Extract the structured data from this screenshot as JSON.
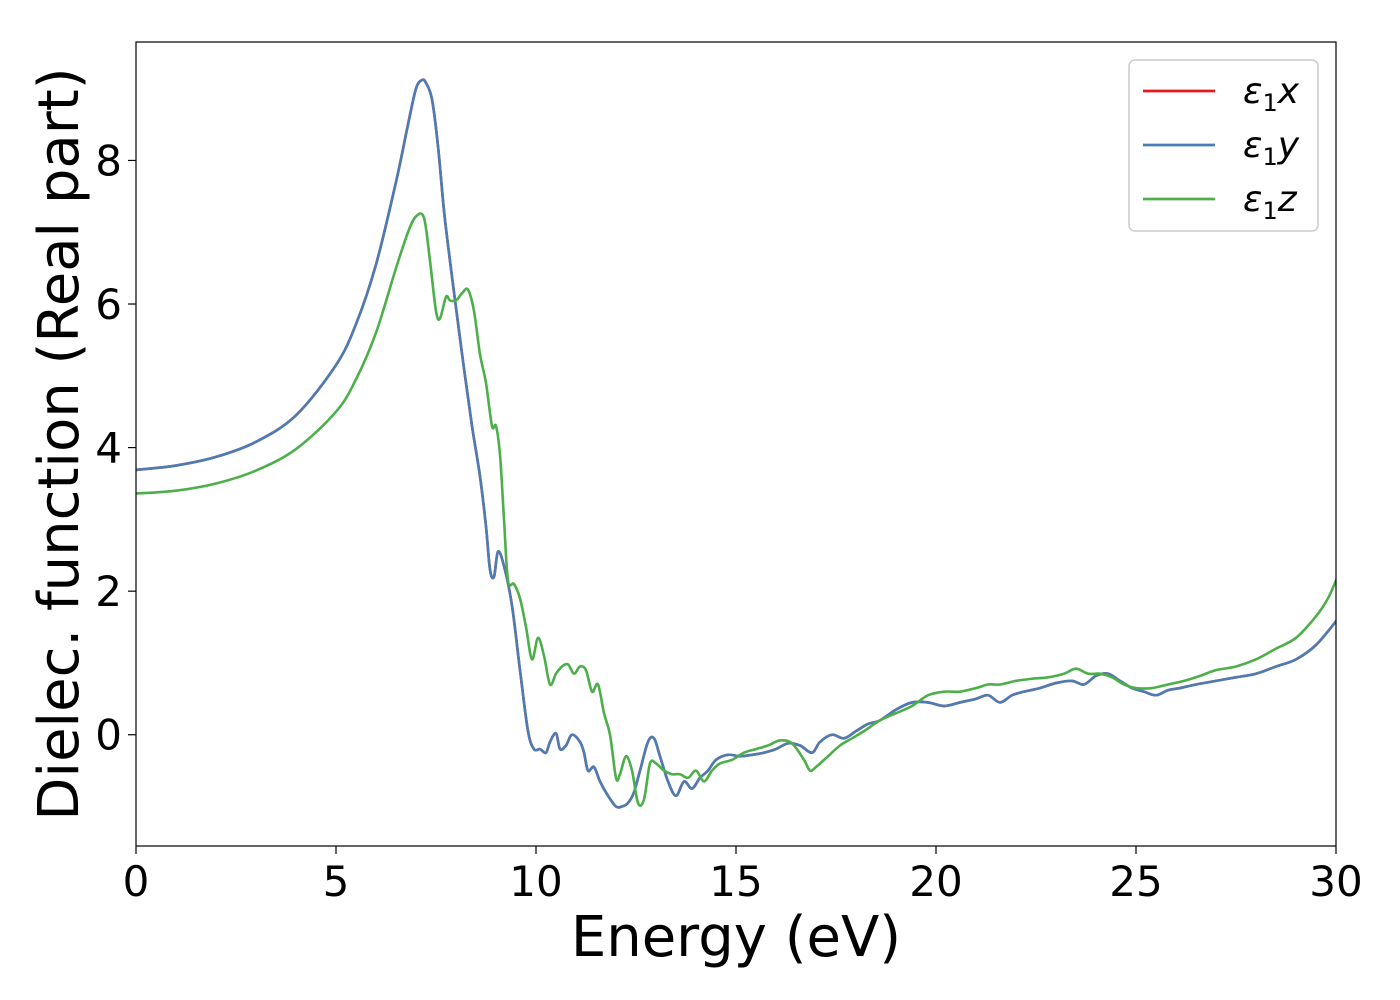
{
  "chart_data": {
    "type": "line",
    "title": "",
    "xlabel": "Energy (eV)",
    "ylabel": "Dielec. function (Real part)",
    "xlim": [
      0,
      30
    ],
    "ylim": [
      -1.55,
      9.65
    ],
    "xticks": [
      0,
      5,
      10,
      15,
      20,
      25,
      30
    ],
    "yticks": [
      0,
      2,
      4,
      6,
      8
    ],
    "xtick_labels": [
      "0",
      "5",
      "10",
      "15",
      "20",
      "25",
      "30"
    ],
    "ytick_labels": [
      "0",
      "2",
      "4",
      "6",
      "8"
    ],
    "grid": false,
    "legend_position": "top-right",
    "series": [
      {
        "name": "ε1x",
        "legend_main": "ε",
        "legend_sub": "1",
        "legend_tail": "x",
        "color": "#e41a1c",
        "x": [
          0,
          1,
          2,
          3,
          4,
          5,
          5.5,
          6,
          6.5,
          6.8,
          7,
          7.15,
          7.25,
          7.4,
          7.55,
          7.7,
          7.85,
          8,
          8.2,
          8.4,
          8.6,
          8.75,
          8.85,
          8.95,
          9.05,
          9.2,
          9.4,
          9.6,
          9.8,
          9.95,
          10.1,
          10.25,
          10.35,
          10.5,
          10.6,
          10.75,
          10.9,
          11.1,
          11.2,
          11.3,
          11.45,
          11.6,
          11.8,
          12,
          12.15,
          12.3,
          12.45,
          12.6,
          12.8,
          12.95,
          13.1,
          13.3,
          13.5,
          13.7,
          13.9,
          14.1,
          14.3,
          14.5,
          14.8,
          15.1,
          15.4,
          15.7,
          16,
          16.3,
          16.6,
          16.9,
          17.1,
          17.4,
          17.7,
          18,
          18.3,
          18.6,
          19,
          19.4,
          19.8,
          20.2,
          20.6,
          21,
          21.3,
          21.6,
          21.9,
          22.2,
          22.6,
          23,
          23.4,
          23.7,
          24,
          24.3,
          24.6,
          24.9,
          25.2,
          25.5,
          25.8,
          26.1,
          26.5,
          27,
          27.5,
          28,
          28.5,
          29,
          29.5,
          30
        ],
        "y": [
          3.69,
          3.75,
          3.87,
          4.08,
          4.45,
          5.15,
          5.72,
          6.55,
          7.7,
          8.5,
          9.0,
          9.12,
          9.08,
          8.85,
          8.2,
          7.3,
          6.6,
          5.95,
          5.1,
          4.3,
          3.6,
          2.9,
          2.3,
          2.2,
          2.55,
          2.35,
          1.8,
          0.9,
          0.05,
          -0.2,
          -0.2,
          -0.25,
          -0.1,
          0.02,
          -0.2,
          -0.15,
          0.0,
          -0.1,
          -0.25,
          -0.5,
          -0.45,
          -0.65,
          -0.85,
          -1.0,
          -1.0,
          -0.95,
          -0.8,
          -0.5,
          -0.1,
          -0.05,
          -0.3,
          -0.65,
          -0.85,
          -0.65,
          -0.75,
          -0.6,
          -0.5,
          -0.35,
          -0.28,
          -0.3,
          -0.28,
          -0.25,
          -0.2,
          -0.12,
          -0.15,
          -0.25,
          -0.1,
          0.0,
          -0.05,
          0.05,
          0.15,
          0.2,
          0.35,
          0.45,
          0.45,
          0.4,
          0.45,
          0.5,
          0.55,
          0.45,
          0.55,
          0.6,
          0.65,
          0.72,
          0.75,
          0.7,
          0.82,
          0.85,
          0.75,
          0.65,
          0.6,
          0.55,
          0.62,
          0.65,
          0.7,
          0.75,
          0.8,
          0.85,
          0.95,
          1.05,
          1.25,
          1.58
        ]
      },
      {
        "name": "ε1y",
        "legend_main": "ε",
        "legend_sub": "1",
        "legend_tail": "y",
        "color": "#4a7db5",
        "x": [
          0,
          1,
          2,
          3,
          4,
          5,
          5.5,
          6,
          6.5,
          6.8,
          7,
          7.15,
          7.25,
          7.4,
          7.55,
          7.7,
          7.85,
          8,
          8.2,
          8.4,
          8.6,
          8.75,
          8.85,
          8.95,
          9.05,
          9.2,
          9.4,
          9.6,
          9.8,
          9.95,
          10.1,
          10.25,
          10.35,
          10.5,
          10.6,
          10.75,
          10.9,
          11.1,
          11.2,
          11.3,
          11.45,
          11.6,
          11.8,
          12,
          12.15,
          12.3,
          12.45,
          12.6,
          12.8,
          12.95,
          13.1,
          13.3,
          13.5,
          13.7,
          13.9,
          14.1,
          14.3,
          14.5,
          14.8,
          15.1,
          15.4,
          15.7,
          16,
          16.3,
          16.6,
          16.9,
          17.1,
          17.4,
          17.7,
          18,
          18.3,
          18.6,
          19,
          19.4,
          19.8,
          20.2,
          20.6,
          21,
          21.3,
          21.6,
          21.9,
          22.2,
          22.6,
          23,
          23.4,
          23.7,
          24,
          24.3,
          24.6,
          24.9,
          25.2,
          25.5,
          25.8,
          26.1,
          26.5,
          27,
          27.5,
          28,
          28.5,
          29,
          29.5,
          30
        ],
        "y": [
          3.69,
          3.75,
          3.87,
          4.08,
          4.45,
          5.15,
          5.72,
          6.55,
          7.7,
          8.5,
          9.0,
          9.12,
          9.08,
          8.85,
          8.2,
          7.3,
          6.6,
          5.95,
          5.1,
          4.3,
          3.6,
          2.9,
          2.3,
          2.2,
          2.55,
          2.35,
          1.8,
          0.9,
          0.05,
          -0.2,
          -0.2,
          -0.25,
          -0.1,
          0.02,
          -0.2,
          -0.15,
          0.0,
          -0.1,
          -0.25,
          -0.5,
          -0.45,
          -0.65,
          -0.85,
          -1.0,
          -1.0,
          -0.95,
          -0.8,
          -0.5,
          -0.1,
          -0.05,
          -0.3,
          -0.65,
          -0.85,
          -0.65,
          -0.75,
          -0.6,
          -0.5,
          -0.35,
          -0.28,
          -0.3,
          -0.28,
          -0.25,
          -0.2,
          -0.12,
          -0.15,
          -0.25,
          -0.1,
          0.0,
          -0.05,
          0.05,
          0.15,
          0.2,
          0.35,
          0.45,
          0.45,
          0.4,
          0.45,
          0.5,
          0.55,
          0.45,
          0.55,
          0.6,
          0.65,
          0.72,
          0.75,
          0.7,
          0.82,
          0.85,
          0.75,
          0.65,
          0.6,
          0.55,
          0.62,
          0.65,
          0.7,
          0.75,
          0.8,
          0.85,
          0.95,
          1.05,
          1.25,
          1.58
        ]
      },
      {
        "name": "ε1z",
        "legend_main": "ε",
        "legend_sub": "1",
        "legend_tail": "z",
        "color": "#4daf4a",
        "x": [
          0,
          1,
          2,
          3,
          4,
          5,
          5.5,
          6,
          6.5,
          6.8,
          7,
          7.2,
          7.35,
          7.5,
          7.6,
          7.75,
          7.85,
          8,
          8.15,
          8.3,
          8.45,
          8.6,
          8.75,
          8.9,
          9.0,
          9.1,
          9.2,
          9.3,
          9.45,
          9.6,
          9.75,
          9.9,
          10.05,
          10.2,
          10.35,
          10.5,
          10.65,
          10.8,
          10.95,
          11.1,
          11.25,
          11.4,
          11.55,
          11.7,
          11.85,
          12.0,
          12.1,
          12.25,
          12.4,
          12.55,
          12.7,
          12.85,
          13.0,
          13.2,
          13.4,
          13.6,
          13.8,
          14.0,
          14.2,
          14.4,
          14.6,
          14.9,
          15.2,
          15.5,
          15.8,
          16.1,
          16.4,
          16.7,
          16.85,
          17.0,
          17.3,
          17.6,
          17.9,
          18.2,
          18.6,
          19.0,
          19.4,
          19.8,
          20.2,
          20.6,
          21.0,
          21.3,
          21.6,
          22.0,
          22.4,
          22.8,
          23.2,
          23.5,
          23.8,
          24.1,
          24.4,
          24.7,
          25.0,
          25.4,
          25.8,
          26.2,
          26.6,
          27.0,
          27.5,
          28.0,
          28.5,
          29.0,
          29.5,
          29.8,
          30
        ],
        "y": [
          3.36,
          3.4,
          3.5,
          3.68,
          3.98,
          4.5,
          4.95,
          5.6,
          6.5,
          7.0,
          7.22,
          7.2,
          6.6,
          5.9,
          5.8,
          6.1,
          6.05,
          6.05,
          6.15,
          6.2,
          5.9,
          5.3,
          4.9,
          4.3,
          4.3,
          3.9,
          3.0,
          2.15,
          2.1,
          1.9,
          1.5,
          1.05,
          1.35,
          1.1,
          0.7,
          0.85,
          0.95,
          0.98,
          0.85,
          0.95,
          0.9,
          0.6,
          0.7,
          0.3,
          0.0,
          -0.6,
          -0.55,
          -0.3,
          -0.5,
          -0.95,
          -0.9,
          -0.4,
          -0.4,
          -0.5,
          -0.55,
          -0.55,
          -0.6,
          -0.5,
          -0.65,
          -0.5,
          -0.4,
          -0.35,
          -0.25,
          -0.2,
          -0.15,
          -0.08,
          -0.12,
          -0.35,
          -0.5,
          -0.45,
          -0.3,
          -0.15,
          -0.05,
          0.05,
          0.2,
          0.3,
          0.4,
          0.55,
          0.6,
          0.6,
          0.65,
          0.7,
          0.7,
          0.75,
          0.78,
          0.8,
          0.85,
          0.92,
          0.85,
          0.85,
          0.8,
          0.7,
          0.65,
          0.65,
          0.7,
          0.75,
          0.82,
          0.9,
          0.95,
          1.05,
          1.2,
          1.35,
          1.65,
          1.9,
          2.15
        ]
      }
    ]
  }
}
